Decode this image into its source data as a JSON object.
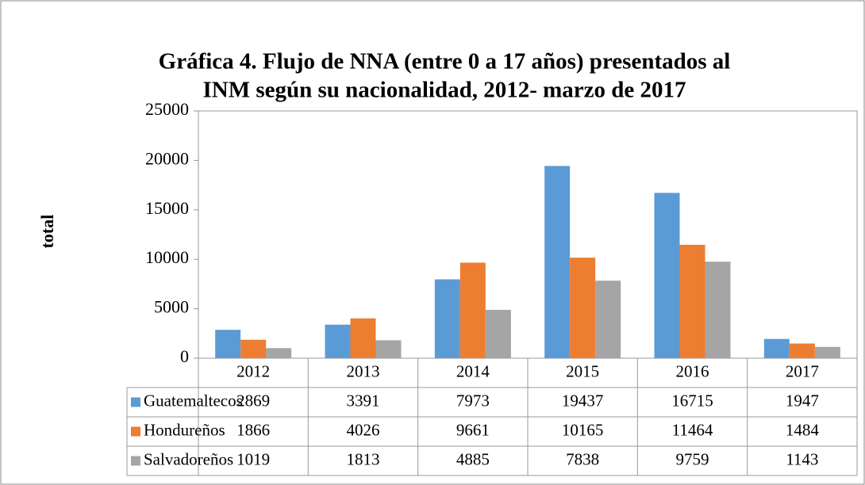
{
  "chart_data": {
    "type": "bar",
    "title": [
      "Gráfica 4. Flujo de NNA (entre 0 a 17 años) presentados al",
      "INM según su nacionalidad, 2012- marzo de 2017"
    ],
    "y_label": "total",
    "categories": [
      "2012",
      "2013",
      "2014",
      "2015",
      "2016",
      "2017"
    ],
    "series": [
      {
        "name": "Guatemaltecos",
        "color": "#5b9bd5",
        "values": [
          2869,
          3391,
          7973,
          19437,
          16715,
          1947
        ]
      },
      {
        "name": "Hondureños",
        "color": "#ed7d31",
        "values": [
          1866,
          4026,
          9661,
          10165,
          11464,
          1484
        ]
      },
      {
        "name": "Salvadoreños",
        "color": "#a5a5a5",
        "values": [
          1019,
          1813,
          4885,
          7838,
          9759,
          1143
        ]
      }
    ],
    "ylim": [
      0,
      25000
    ],
    "yticks": [
      0,
      5000,
      10000,
      15000,
      20000,
      25000
    ]
  }
}
